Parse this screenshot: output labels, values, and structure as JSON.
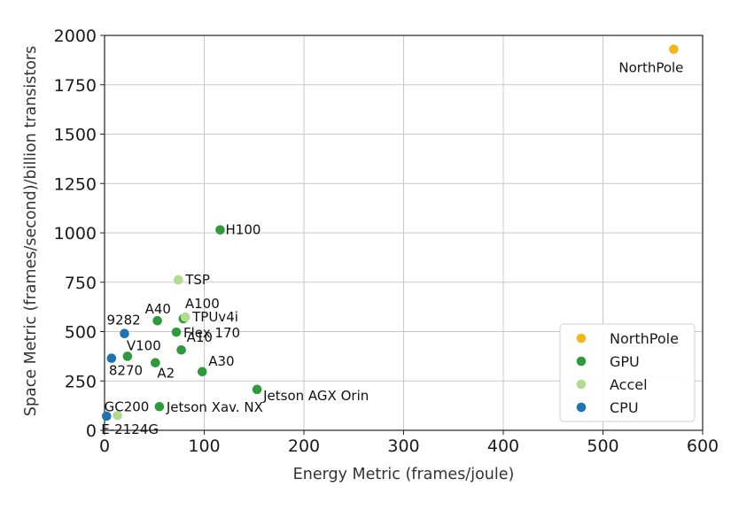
{
  "chart_data": {
    "type": "scatter",
    "xlabel": "Energy Metric (frames/joule)",
    "ylabel": "Space Metric (frames/second)/billion transistors",
    "xlim": [
      0,
      600
    ],
    "ylim": [
      0,
      2000
    ],
    "xticks": [
      "0",
      "100",
      "200",
      "300",
      "400",
      "500",
      "600"
    ],
    "yticks": [
      "0",
      "250",
      "500",
      "750",
      "1000",
      "1250",
      "1500",
      "1750",
      "2000"
    ],
    "grid": true,
    "legend_position": "lower-right",
    "series": [
      {
        "name": "NorthPole",
        "color": "#f3b71b",
        "points": [
          {
            "label": "NorthPole",
            "x": 571,
            "y": 1930
          }
        ]
      },
      {
        "name": "GPU",
        "color": "#2e9a3c",
        "points": [
          {
            "label": "H100",
            "x": 116,
            "y": 1015
          },
          {
            "label": "A40",
            "x": 53,
            "y": 555
          },
          {
            "label": "A100",
            "x": 79,
            "y": 565
          },
          {
            "label": "Flex 170",
            "x": 72,
            "y": 497
          },
          {
            "label": "A10",
            "x": 77,
            "y": 407
          },
          {
            "label": "V100",
            "x": 23,
            "y": 375
          },
          {
            "label": "A2",
            "x": 51,
            "y": 342
          },
          {
            "label": "A30",
            "x": 98,
            "y": 297
          },
          {
            "label": "Jetson AGX Orin",
            "x": 153,
            "y": 207
          },
          {
            "label": "Jetson Xav. NX",
            "x": 55,
            "y": 120
          }
        ]
      },
      {
        "name": "Accel",
        "color": "#b3db8f",
        "points": [
          {
            "label": "TSP",
            "x": 74,
            "y": 762
          },
          {
            "label": "TPUv4i",
            "x": 81,
            "y": 573
          },
          {
            "label": "GC200",
            "x": 13,
            "y": 75
          }
        ]
      },
      {
        "name": "CPU",
        "color": "#1f72b4",
        "points": [
          {
            "label": "9282",
            "x": 20,
            "y": 490
          },
          {
            "label": "8270",
            "x": 7,
            "y": 365
          },
          {
            "label": "E-2124G",
            "x": 2,
            "y": 72
          }
        ]
      }
    ]
  }
}
